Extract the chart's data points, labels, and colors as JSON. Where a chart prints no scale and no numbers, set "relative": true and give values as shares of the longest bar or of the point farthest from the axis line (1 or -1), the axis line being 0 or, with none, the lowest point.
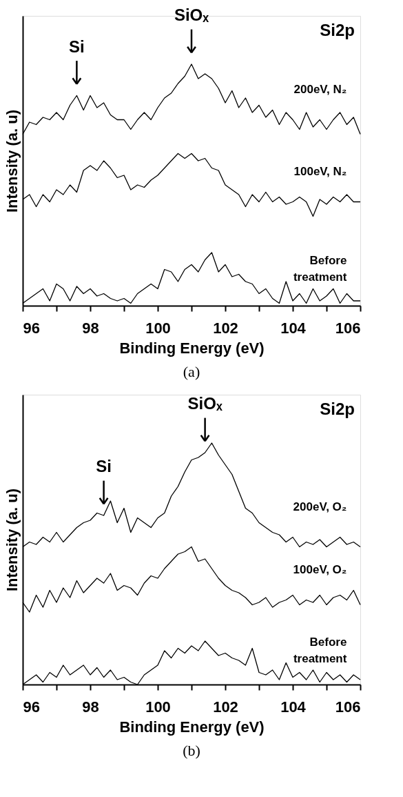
{
  "chart_data": [
    {
      "type": "line",
      "xlabel": "Binding Energy (eV)",
      "ylabel": "Intensity (a. u)",
      "relative": true,
      "x": [
        96.0,
        96.2,
        96.4,
        96.6,
        96.8,
        97.0,
        97.2,
        97.4,
        97.6,
        97.8,
        98.0,
        98.2,
        98.4,
        98.6,
        98.8,
        99.0,
        99.2,
        99.4,
        99.6,
        99.8,
        100.0,
        100.2,
        100.4,
        100.6,
        100.8,
        101.0,
        101.2,
        101.4,
        101.6,
        101.8,
        102.0,
        102.2,
        102.4,
        102.6,
        102.8,
        103.0,
        103.2,
        103.4,
        103.6,
        103.8,
        104.0,
        104.2,
        104.4,
        104.6,
        104.8,
        105.0,
        105.2,
        105.4,
        105.6,
        105.8,
        106.0
      ],
      "xlim": [
        96,
        106
      ],
      "xticks": [
        96,
        {
          "value": 97,
          "label": null
        },
        98,
        {
          "value": 99,
          "label": null
        },
        100,
        {
          "value": 101,
          "label": null
        },
        102,
        {
          "value": 103,
          "label": null
        },
        104,
        {
          "value": 105,
          "label": null
        },
        106
      ],
      "series": [
        {
          "name": "200eV, N₂",
          "color": "#000000",
          "values": [
            0.71,
            0.76,
            0.75,
            0.78,
            0.77,
            0.8,
            0.77,
            0.83,
            0.87,
            0.81,
            0.87,
            0.82,
            0.84,
            0.79,
            0.77,
            0.77,
            0.73,
            0.77,
            0.8,
            0.77,
            0.82,
            0.86,
            0.88,
            0.92,
            0.95,
            1.0,
            0.94,
            0.96,
            0.94,
            0.9,
            0.84,
            0.89,
            0.82,
            0.86,
            0.8,
            0.83,
            0.78,
            0.81,
            0.75,
            0.8,
            0.77,
            0.73,
            0.8,
            0.74,
            0.77,
            0.73,
            0.77,
            0.8,
            0.75,
            0.78,
            0.71
          ]
        },
        {
          "name": "100eV, N₂",
          "color": "#000000",
          "values": [
            0.44,
            0.46,
            0.41,
            0.46,
            0.43,
            0.48,
            0.46,
            0.5,
            0.47,
            0.56,
            0.58,
            0.56,
            0.6,
            0.57,
            0.53,
            0.54,
            0.48,
            0.5,
            0.49,
            0.52,
            0.54,
            0.57,
            0.6,
            0.63,
            0.61,
            0.63,
            0.6,
            0.61,
            0.57,
            0.56,
            0.5,
            0.48,
            0.46,
            0.41,
            0.46,
            0.43,
            0.47,
            0.43,
            0.45,
            0.42,
            0.43,
            0.45,
            0.43,
            0.37,
            0.44,
            0.42,
            0.45,
            0.43,
            0.46,
            0.43,
            0.43
          ]
        },
        {
          "name": "Before treatment",
          "color": "#000000",
          "values": [
            0.01,
            0.03,
            0.05,
            0.07,
            0.02,
            0.09,
            0.07,
            0.02,
            0.08,
            0.05,
            0.07,
            0.04,
            0.05,
            0.03,
            0.02,
            0.03,
            0.01,
            0.05,
            0.07,
            0.09,
            0.07,
            0.15,
            0.14,
            0.1,
            0.15,
            0.17,
            0.14,
            0.19,
            0.22,
            0.14,
            0.17,
            0.12,
            0.13,
            0.1,
            0.09,
            0.05,
            0.07,
            0.03,
            0.01,
            0.1,
            0.02,
            0.05,
            0.01,
            0.07,
            0.02,
            0.04,
            0.07,
            0.01,
            0.05,
            0.02,
            0.02
          ]
        }
      ],
      "annotations": [
        {
          "text": "Si",
          "x": 97.6,
          "y": 0.87
        },
        {
          "text": "SiOₓ",
          "x": 101.0,
          "y": 1.0
        },
        "Si2p",
        "(a)"
      ]
    },
    {
      "type": "line",
      "xlabel": "Binding Energy (eV)",
      "ylabel": "Intensity (a. u)",
      "relative": true,
      "x": [
        96.0,
        96.2,
        96.4,
        96.6,
        96.8,
        97.0,
        97.2,
        97.4,
        97.6,
        97.8,
        98.0,
        98.2,
        98.4,
        98.6,
        98.8,
        99.0,
        99.2,
        99.4,
        99.6,
        99.8,
        100.0,
        100.2,
        100.4,
        100.6,
        100.8,
        101.0,
        101.2,
        101.4,
        101.6,
        101.8,
        102.0,
        102.2,
        102.4,
        102.6,
        102.8,
        103.0,
        103.2,
        103.4,
        103.6,
        103.8,
        104.0,
        104.2,
        104.4,
        104.6,
        104.8,
        105.0,
        105.2,
        105.4,
        105.6,
        105.8,
        106.0
      ],
      "xlim": [
        96,
        106
      ],
      "xticks": [
        96,
        {
          "value": 97,
          "label": null
        },
        98,
        {
          "value": 99,
          "label": null
        },
        100,
        {
          "value": 101,
          "label": null
        },
        102,
        {
          "value": 103,
          "label": null
        },
        104,
        {
          "value": 105,
          "label": null
        },
        106
      ],
      "series": [
        {
          "name": "200eV, O₂",
          "color": "#000000",
          "values": [
            0.57,
            0.59,
            0.58,
            0.61,
            0.59,
            0.63,
            0.59,
            0.62,
            0.65,
            0.67,
            0.68,
            0.71,
            0.7,
            0.76,
            0.67,
            0.73,
            0.63,
            0.69,
            0.67,
            0.65,
            0.69,
            0.71,
            0.78,
            0.82,
            0.88,
            0.93,
            0.94,
            0.96,
            1.0,
            0.95,
            0.91,
            0.87,
            0.8,
            0.73,
            0.71,
            0.67,
            0.65,
            0.63,
            0.62,
            0.59,
            0.61,
            0.57,
            0.59,
            0.58,
            0.6,
            0.57,
            0.59,
            0.61,
            0.58,
            0.59,
            0.57
          ]
        },
        {
          "name": "100eV, O₂",
          "color": "#000000",
          "values": [
            0.34,
            0.3,
            0.37,
            0.32,
            0.39,
            0.34,
            0.4,
            0.36,
            0.43,
            0.38,
            0.41,
            0.44,
            0.42,
            0.46,
            0.39,
            0.41,
            0.4,
            0.37,
            0.42,
            0.45,
            0.44,
            0.48,
            0.51,
            0.54,
            0.55,
            0.57,
            0.51,
            0.52,
            0.48,
            0.44,
            0.41,
            0.39,
            0.38,
            0.36,
            0.33,
            0.34,
            0.36,
            0.32,
            0.34,
            0.35,
            0.37,
            0.33,
            0.35,
            0.34,
            0.37,
            0.33,
            0.36,
            0.37,
            0.35,
            0.39,
            0.33
          ]
        },
        {
          "name": "Before treatment",
          "color": "#000000",
          "values": [
            0.0,
            0.02,
            0.04,
            0.01,
            0.05,
            0.03,
            0.08,
            0.04,
            0.06,
            0.08,
            0.04,
            0.07,
            0.03,
            0.06,
            0.02,
            0.03,
            0.01,
            0.0,
            0.04,
            0.06,
            0.08,
            0.14,
            0.11,
            0.15,
            0.13,
            0.16,
            0.14,
            0.18,
            0.15,
            0.12,
            0.13,
            0.11,
            0.1,
            0.08,
            0.15,
            0.05,
            0.04,
            0.06,
            0.02,
            0.09,
            0.03,
            0.05,
            0.02,
            0.06,
            0.01,
            0.05,
            0.02,
            0.04,
            0.01,
            0.04,
            0.02
          ]
        }
      ],
      "annotations": [
        {
          "text": "Si",
          "x": 98.4,
          "y": 0.7
        },
        {
          "text": "SiOₓ",
          "x": 101.4,
          "y": 0.96
        },
        "Si2p",
        "(b)"
      ]
    }
  ]
}
